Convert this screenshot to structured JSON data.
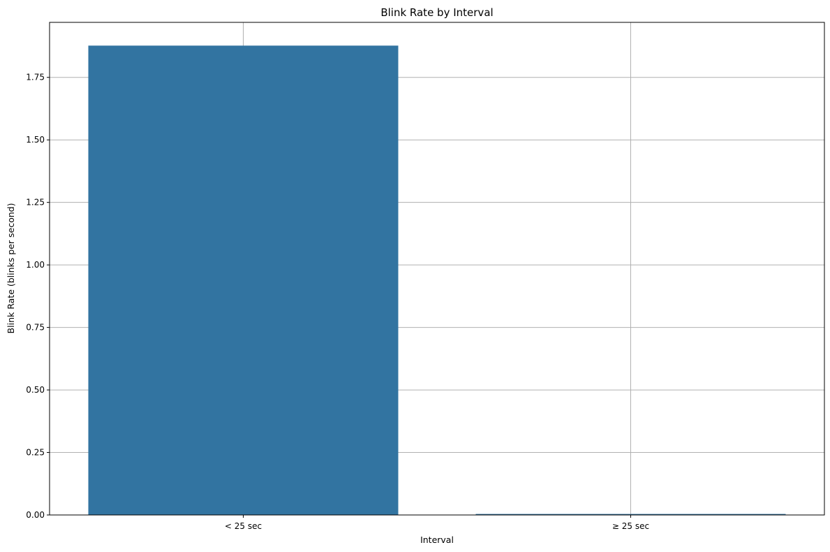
{
  "chart_data": {
    "type": "bar",
    "title": "Blink Rate by Interval",
    "xlabel": "Interval",
    "ylabel": "Blink Rate (blinks per second)",
    "categories": [
      "< 25 sec",
      "≥ 25 sec"
    ],
    "values": [
      1.877,
      0.004
    ],
    "ylim": [
      0,
      1.97
    ],
    "yticks": [
      0.0,
      0.25,
      0.5,
      0.75,
      1.0,
      1.25,
      1.5,
      1.75
    ],
    "ytick_labels": [
      "0.00",
      "0.25",
      "0.50",
      "0.75",
      "1.00",
      "1.25",
      "1.50",
      "1.75"
    ],
    "grid": true,
    "legend": "none",
    "colors": {
      "bar": "#3274a1",
      "grid": "#b0b0b0",
      "axes": "#000000"
    }
  }
}
